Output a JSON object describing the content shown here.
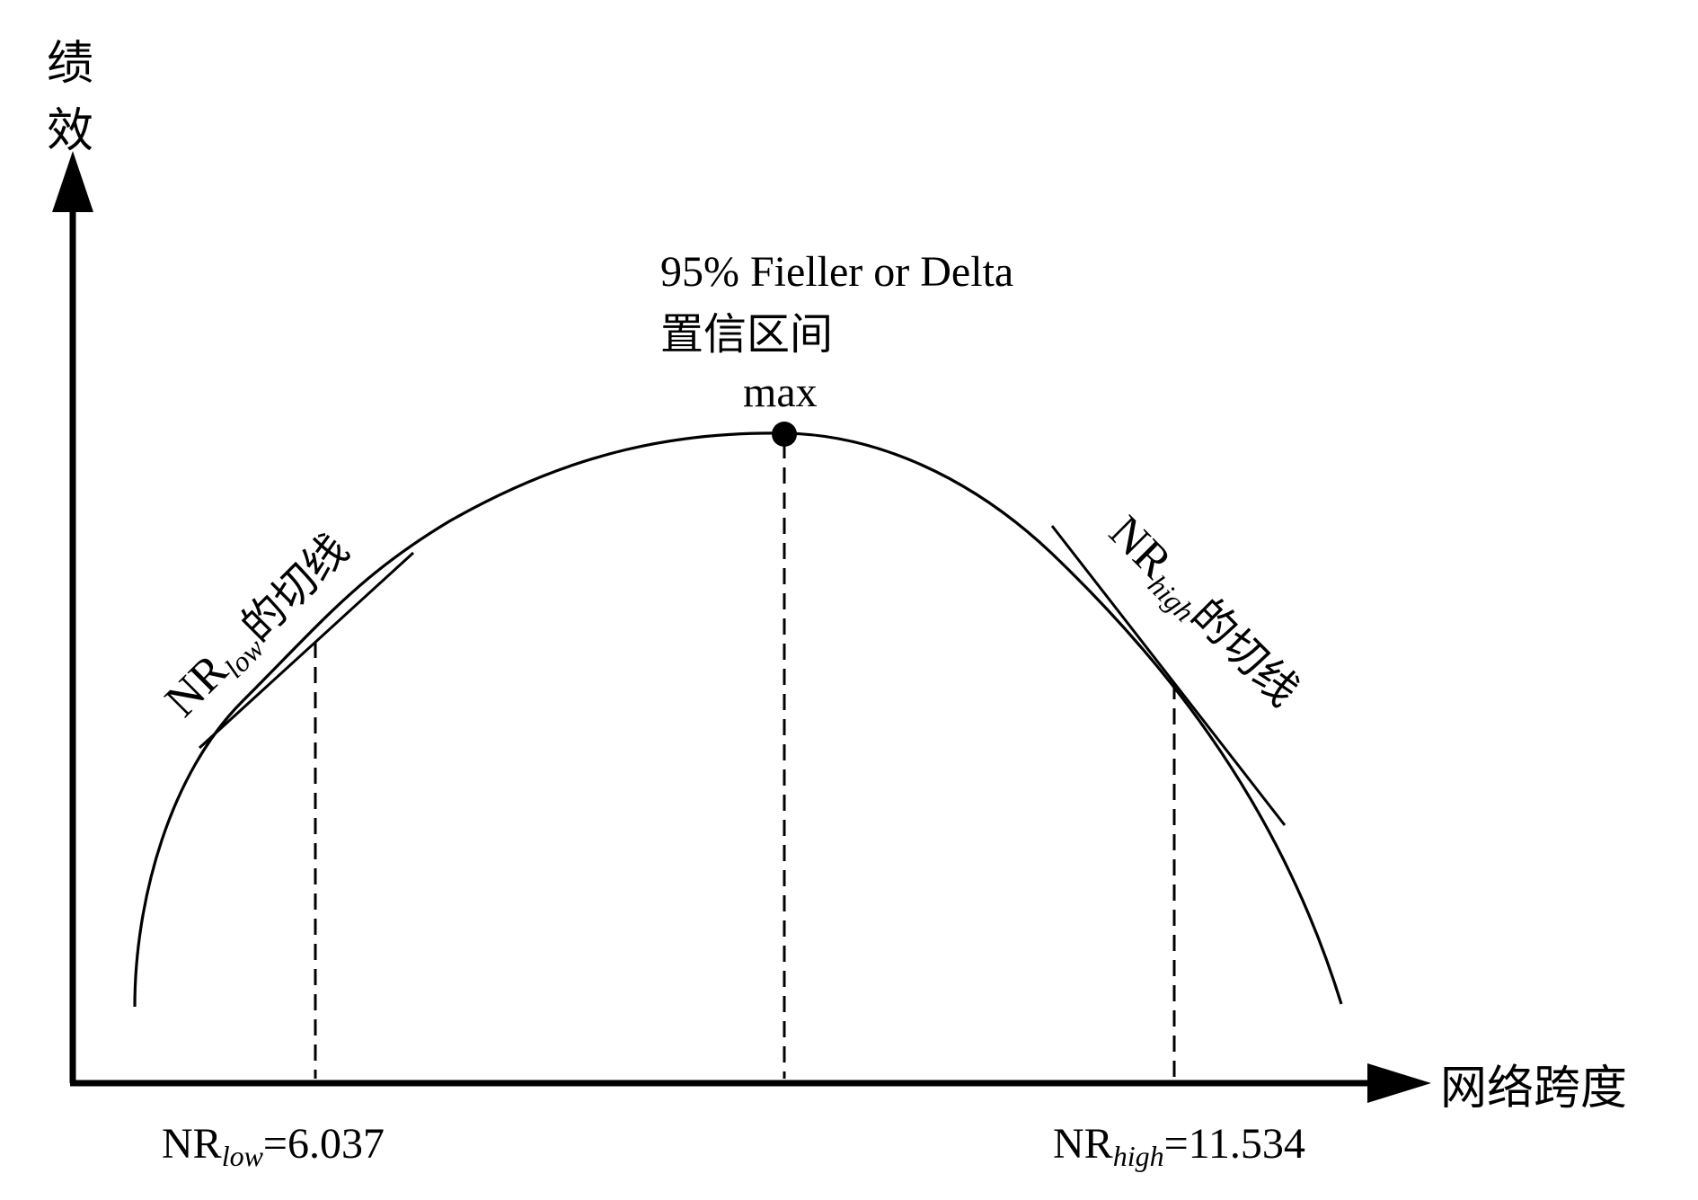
{
  "y_axis_label": {
    "line1": "绩",
    "line2": "效"
  },
  "x_axis_label": "网络跨度",
  "peak": {
    "label": "max",
    "interval_line1": "95% Fieller or Delta",
    "interval_line2": "置信区间"
  },
  "tangent_low": {
    "prefix": "NR",
    "sub": "low",
    "suffix": "的切线"
  },
  "tangent_high": {
    "prefix": "NR",
    "sub": "high",
    "suffix": "的切线"
  },
  "value_low": {
    "prefix": "NR",
    "sub": "low",
    "suffix": "=6.037"
  },
  "value_high": {
    "prefix": "NR",
    "sub": "high",
    "suffix": "=11.534"
  },
  "colors": {
    "ink": "#000000",
    "background": "#ffffff"
  }
}
